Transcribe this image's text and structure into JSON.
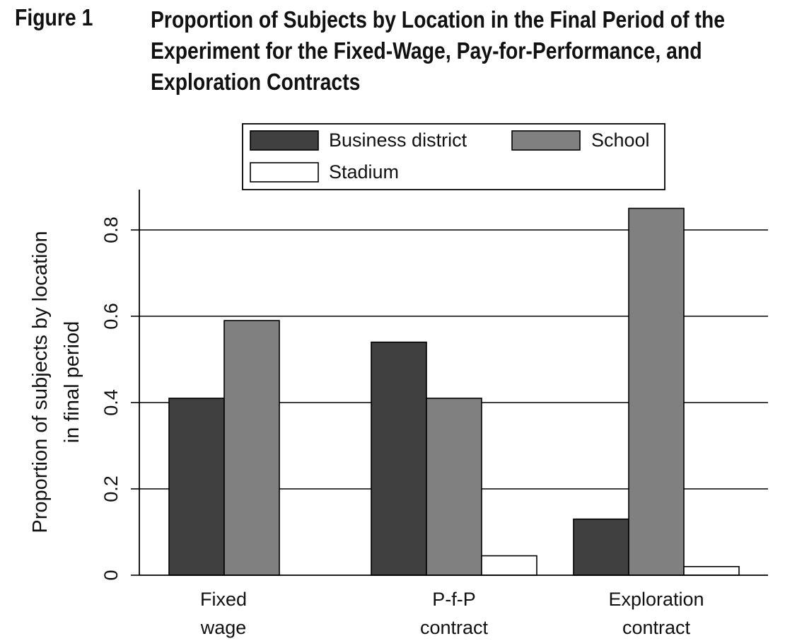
{
  "figure": {
    "label": "Figure 1",
    "title_lines": [
      "Proportion of Subjects by Location in the Final Period of the",
      "Experiment for the Fixed-Wage, Pay-for-Performance, and",
      "Exploration Contracts"
    ]
  },
  "chart_data": {
    "type": "bar",
    "categories": [
      [
        "Fixed",
        "wage"
      ],
      [
        "P-f-P",
        "contract"
      ],
      [
        "Exploration",
        "contract"
      ]
    ],
    "series": [
      {
        "name": "Business district",
        "color": "#404040",
        "values": [
          0.41,
          0.54,
          0.13
        ]
      },
      {
        "name": "School",
        "color": "#808080",
        "values": [
          0.59,
          0.41,
          0.85
        ]
      },
      {
        "name": "Stadium",
        "color": "#ffffff",
        "values": [
          0.0,
          0.045,
          0.02
        ]
      }
    ],
    "ylabel": [
      "Proportion of subjects by location",
      "in final period"
    ],
    "ylim": [
      0,
      0.9
    ],
    "yticks": [
      0,
      0.2,
      0.4,
      0.6,
      0.8
    ],
    "ytick_labels": [
      "0",
      "0.2",
      "0.4",
      "0.6",
      "0.8"
    ],
    "grid": true,
    "legend_position": "top"
  }
}
